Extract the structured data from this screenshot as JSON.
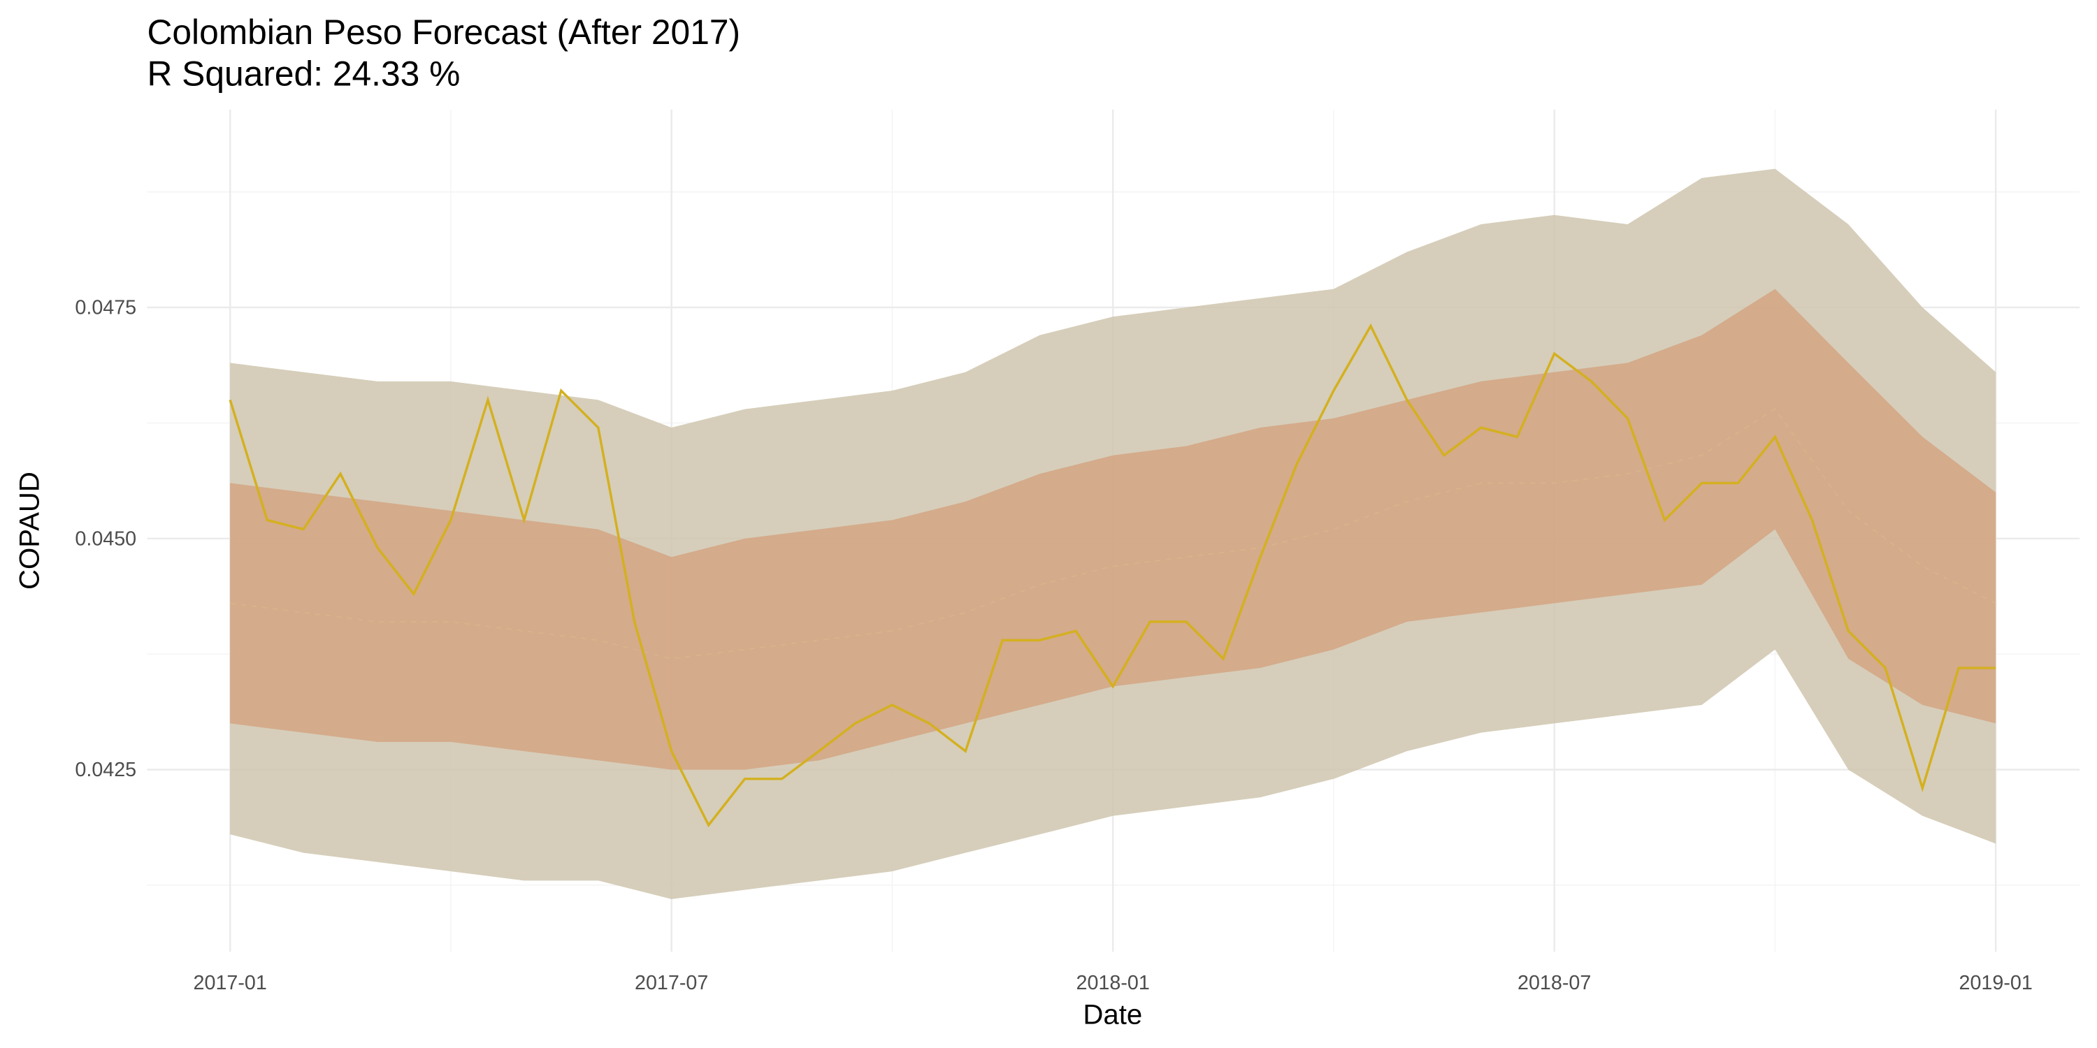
{
  "chart_data": {
    "type": "forecast",
    "title": "Colombian Peso Forecast (After 2017)",
    "subtitle": "R Squared: 24.33 %",
    "x_label": "Date",
    "y_label": "COPAUD",
    "xlim": [
      2016.906,
      2019.095
    ],
    "ylim": [
      0.04053,
      0.04964
    ],
    "xticks": [
      {
        "value": 2017,
        "label": "2017-01"
      },
      {
        "value": 2017.5,
        "label": "2017-07"
      },
      {
        "value": 2018,
        "label": "2018-01"
      },
      {
        "value": 2018.5,
        "label": "2018-07"
      },
      {
        "value": 2019,
        "label": "2019-01"
      }
    ],
    "xminorticks": [
      2017.25,
      2017.75,
      2018.25,
      2018.75
    ],
    "yticks": [
      {
        "value": 0.0425,
        "label": "0.0425"
      },
      {
        "value": 0.045,
        "label": "0.0450"
      },
      {
        "value": 0.0475,
        "label": "0.0475"
      }
    ],
    "yminorticks": [
      0.04125,
      0.04375,
      0.04625,
      0.04875
    ],
    "grid": true,
    "bands": [
      {
        "color": "#cfc5ae",
        "x": [
          2017,
          2017.083,
          2017.167,
          2017.25,
          2017.333,
          2017.417,
          2017.5,
          2017.583,
          2017.667,
          2017.75,
          2017.833,
          2017.917,
          2018,
          2018.083,
          2018.167,
          2018.25,
          2018.333,
          2018.417,
          2018.5,
          2018.583,
          2018.667,
          2018.75,
          2018.833,
          2018.917,
          2019
        ],
        "upper": [
          0.0469,
          0.0468,
          0.0467,
          0.0467,
          0.0466,
          0.0465,
          0.0462,
          0.0464,
          0.0465,
          0.0466,
          0.0468,
          0.0472,
          0.0474,
          0.0475,
          0.0476,
          0.0477,
          0.0481,
          0.0484,
          0.0485,
          0.0484,
          0.0489,
          0.049,
          0.0484,
          0.0475,
          0.0468
        ],
        "lower": [
          0.0418,
          0.0416,
          0.0415,
          0.0414,
          0.0413,
          0.0413,
          0.0411,
          0.0412,
          0.0413,
          0.0414,
          0.0416,
          0.0418,
          0.042,
          0.0421,
          0.0422,
          0.0424,
          0.0427,
          0.0429,
          0.043,
          0.0431,
          0.0432,
          0.0438,
          0.0425,
          0.042,
          0.0417
        ]
      },
      {
        "color": "#d4a482",
        "x": [
          2017,
          2017.083,
          2017.167,
          2017.25,
          2017.333,
          2017.417,
          2017.5,
          2017.583,
          2017.667,
          2017.75,
          2017.833,
          2017.917,
          2018,
          2018.083,
          2018.167,
          2018.25,
          2018.333,
          2018.417,
          2018.5,
          2018.583,
          2018.667,
          2018.75,
          2018.833,
          2018.917,
          2019
        ],
        "upper": [
          0.0456,
          0.0455,
          0.0454,
          0.0453,
          0.0452,
          0.0451,
          0.0448,
          0.045,
          0.0451,
          0.0452,
          0.0454,
          0.0457,
          0.0459,
          0.046,
          0.0462,
          0.0463,
          0.0465,
          0.0467,
          0.0468,
          0.0469,
          0.0472,
          0.0477,
          0.0469,
          0.0461,
          0.0455
        ],
        "lower": [
          0.043,
          0.0429,
          0.0428,
          0.0428,
          0.0427,
          0.0426,
          0.0425,
          0.0425,
          0.0426,
          0.0428,
          0.043,
          0.0432,
          0.0434,
          0.0435,
          0.0436,
          0.0438,
          0.0441,
          0.0442,
          0.0443,
          0.0444,
          0.0445,
          0.0451,
          0.0437,
          0.0432,
          0.043
        ]
      }
    ],
    "series": [
      {
        "color": "#dcb98c",
        "dashed": true,
        "x": [
          2017,
          2017.083,
          2017.167,
          2017.25,
          2017.333,
          2017.417,
          2017.5,
          2017.583,
          2017.667,
          2017.75,
          2017.833,
          2017.917,
          2018,
          2018.083,
          2018.167,
          2018.25,
          2018.333,
          2018.417,
          2018.5,
          2018.583,
          2018.667,
          2018.75,
          2018.833,
          2018.917,
          2019
        ],
        "values": [
          0.0443,
          0.0442,
          0.0441,
          0.0441,
          0.044,
          0.0439,
          0.0437,
          0.0438,
          0.0439,
          0.044,
          0.0442,
          0.0445,
          0.0447,
          0.0448,
          0.0449,
          0.0451,
          0.0454,
          0.0456,
          0.0456,
          0.0457,
          0.0459,
          0.0464,
          0.0453,
          0.0447,
          0.0443
        ]
      },
      {
        "color": "#d4b020",
        "dashed": false,
        "x": [
          2017,
          2017.042,
          2017.083,
          2017.125,
          2017.167,
          2017.208,
          2017.25,
          2017.292,
          2017.333,
          2017.375,
          2017.417,
          2017.458,
          2017.5,
          2017.542,
          2017.583,
          2017.625,
          2017.667,
          2017.708,
          2017.75,
          2017.792,
          2017.833,
          2017.875,
          2017.917,
          2017.958,
          2018,
          2018.042,
          2018.083,
          2018.125,
          2018.167,
          2018.208,
          2018.25,
          2018.292,
          2018.333,
          2018.375,
          2018.417,
          2018.458,
          2018.5,
          2018.542,
          2018.583,
          2018.625,
          2018.667,
          2018.708,
          2018.75,
          2018.792,
          2018.833,
          2018.875,
          2018.917,
          2018.958,
          2019
        ],
        "values": [
          0.0465,
          0.0452,
          0.0451,
          0.0457,
          0.0449,
          0.0444,
          0.0452,
          0.0465,
          0.0452,
          0.0466,
          0.0462,
          0.0441,
          0.0427,
          0.0419,
          0.0424,
          0.0424,
          0.0427,
          0.043,
          0.0432,
          0.043,
          0.0427,
          0.0439,
          0.0439,
          0.044,
          0.0434,
          0.0441,
          0.0441,
          0.0437,
          0.0448,
          0.0458,
          0.0466,
          0.0473,
          0.0465,
          0.0459,
          0.0462,
          0.0461,
          0.047,
          0.0467,
          0.0463,
          0.0452,
          0.0456,
          0.0456,
          0.0461,
          0.0452,
          0.044,
          0.0436,
          0.0423,
          0.0436,
          0.0436
        ]
      }
    ]
  }
}
